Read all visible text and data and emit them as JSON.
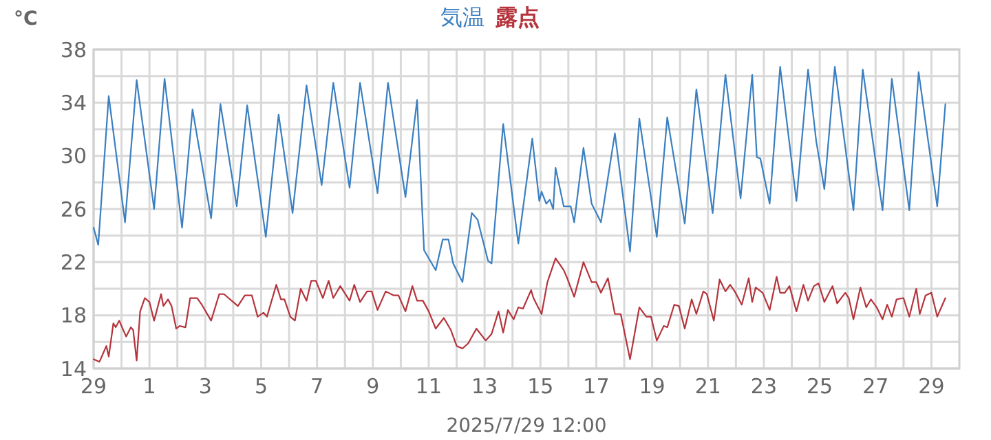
{
  "chart_data": {
    "type": "line",
    "ylabel": "°C",
    "legend": "top",
    "grid": true,
    "annotations": [
      "2025/7/29 12:00"
    ],
    "xlim": [
      "2025-06-29",
      "2025-07-30"
    ],
    "xticks": [
      {
        "value": "2025-06-29",
        "label": "29"
      },
      {
        "value": "2025-06-30",
        "label": null
      },
      {
        "value": "2025-07-01",
        "label": "1"
      },
      {
        "value": "2025-07-02",
        "label": null
      },
      {
        "value": "2025-07-03",
        "label": "3"
      },
      {
        "value": "2025-07-04",
        "label": null
      },
      {
        "value": "2025-07-05",
        "label": "5"
      },
      {
        "value": "2025-07-06",
        "label": null
      },
      {
        "value": "2025-07-07",
        "label": "7"
      },
      {
        "value": "2025-07-08",
        "label": null
      },
      {
        "value": "2025-07-09",
        "label": "9"
      },
      {
        "value": "2025-07-10",
        "label": null
      },
      {
        "value": "2025-07-11",
        "label": "11"
      },
      {
        "value": "2025-07-12",
        "label": null
      },
      {
        "value": "2025-07-13",
        "label": "13"
      },
      {
        "value": "2025-07-14",
        "label": null
      },
      {
        "value": "2025-07-15",
        "label": "15"
      },
      {
        "value": "2025-07-16",
        "label": null
      },
      {
        "value": "2025-07-17",
        "label": "17"
      },
      {
        "value": "2025-07-18",
        "label": null
      },
      {
        "value": "2025-07-19",
        "label": "19"
      },
      {
        "value": "2025-07-20",
        "label": null
      },
      {
        "value": "2025-07-21",
        "label": "21"
      },
      {
        "value": "2025-07-22",
        "label": null
      },
      {
        "value": "2025-07-23",
        "label": "23"
      },
      {
        "value": "2025-07-24",
        "label": null
      },
      {
        "value": "2025-07-25",
        "label": "25"
      },
      {
        "value": "2025-07-26",
        "label": null
      },
      {
        "value": "2025-07-27",
        "label": "27"
      },
      {
        "value": "2025-07-28",
        "label": null
      },
      {
        "value": "2025-07-29",
        "label": "29"
      }
    ],
    "ylim": [
      14,
      38
    ],
    "yticks": [
      14,
      {
        "value": 16,
        "label": null
      },
      18,
      {
        "value": 20,
        "label": null
      },
      22,
      {
        "value": 24,
        "label": null
      },
      26,
      {
        "value": 28,
        "label": null
      },
      30,
      {
        "value": 32,
        "label": null
      },
      34,
      {
        "value": 36,
        "label": null
      },
      38
    ],
    "series": [
      {
        "name": "気温",
        "color": "#3a7fc1",
        "x": [
          "2025-06-29T00:00",
          "2025-06-29T04:00",
          "2025-06-29T13:00",
          "2025-06-30T03:00",
          "2025-06-30T13:00",
          "2025-07-01T04:00",
          "2025-07-01T13:00",
          "2025-07-02T04:00",
          "2025-07-02T13:00",
          "2025-07-03T05:00",
          "2025-07-03T13:00",
          "2025-07-04T03:00",
          "2025-07-04T12:00",
          "2025-07-05T04:00",
          "2025-07-05T15:00",
          "2025-07-06T03:00",
          "2025-07-06T15:00",
          "2025-07-07T04:00",
          "2025-07-07T14:00",
          "2025-07-08T04:00",
          "2025-07-08T13:00",
          "2025-07-09T04:00",
          "2025-07-09T13:00",
          "2025-07-10T04:00",
          "2025-07-10T14:00",
          "2025-07-10T20:00",
          "2025-07-11T06:00",
          "2025-07-11T12:00",
          "2025-07-11T17:00",
          "2025-07-11T21:00",
          "2025-07-12T05:00",
          "2025-07-12T13:00",
          "2025-07-12T18:00",
          "2025-07-13T03:00",
          "2025-07-13T06:00",
          "2025-07-13T16:00",
          "2025-07-14T05:00",
          "2025-07-14T17:00",
          "2025-07-14T23:00",
          "2025-07-15T01:00",
          "2025-07-15T05:00",
          "2025-07-15T08:00",
          "2025-07-15T11:00",
          "2025-07-15T13:00",
          "2025-07-15T20:00",
          "2025-07-16T02:00",
          "2025-07-16T05:00",
          "2025-07-16T13:00",
          "2025-07-16T20:00",
          "2025-07-17T04:00",
          "2025-07-17T16:00",
          "2025-07-18T05:00",
          "2025-07-18T13:00",
          "2025-07-19T04:00",
          "2025-07-19T13:00",
          "2025-07-20T04:00",
          "2025-07-20T14:00",
          "2025-07-21T04:00",
          "2025-07-21T15:00",
          "2025-07-22T04:00",
          "2025-07-22T14:00",
          "2025-07-22T18:00",
          "2025-07-22T21:00",
          "2025-07-23T05:00",
          "2025-07-23T14:00",
          "2025-07-24T04:00",
          "2025-07-24T14:00",
          "2025-07-24T21:00",
          "2025-07-25T04:00",
          "2025-07-25T13:00",
          "2025-07-26T05:00",
          "2025-07-26T13:00",
          "2025-07-27T06:00",
          "2025-07-27T14:00",
          "2025-07-28T05:00",
          "2025-07-28T13:00",
          "2025-07-29T05:00",
          "2025-07-29T12:00"
        ],
        "values": [
          24.6,
          23.3,
          34.5,
          25.0,
          35.7,
          26.0,
          35.8,
          24.6,
          33.5,
          25.3,
          33.9,
          26.2,
          33.8,
          23.9,
          33.1,
          25.7,
          35.3,
          27.8,
          35.5,
          27.6,
          35.5,
          27.2,
          35.5,
          26.9,
          34.2,
          22.9,
          21.4,
          23.7,
          23.7,
          21.9,
          20.5,
          25.7,
          25.2,
          22.1,
          21.9,
          32.4,
          23.4,
          31.3,
          26.6,
          27.3,
          26.4,
          26.7,
          26.0,
          29.1,
          26.2,
          26.2,
          25.0,
          30.6,
          26.4,
          25.0,
          31.7,
          22.8,
          32.8,
          23.9,
          32.9,
          24.9,
          35.0,
          25.7,
          36.1,
          26.8,
          36.1,
          29.9,
          29.8,
          26.4,
          36.7,
          26.6,
          36.5,
          31.1,
          27.5,
          36.7,
          25.9,
          36.5,
          25.9,
          35.8,
          25.9,
          36.3,
          26.2,
          33.9
        ]
      },
      {
        "name": "露点",
        "color": "#b5343c",
        "x": [
          "2025-06-29T00:00",
          "2025-06-29T05:00",
          "2025-06-29T11:00",
          "2025-06-29T13:00",
          "2025-06-29T17:00",
          "2025-06-29T19:00",
          "2025-06-29T22:00",
          "2025-06-30T04:00",
          "2025-06-30T08:00",
          "2025-06-30T10:00",
          "2025-06-30T13:00",
          "2025-06-30T16:00",
          "2025-06-30T20:00",
          "2025-07-01T00:00",
          "2025-07-01T04:00",
          "2025-07-01T10:00",
          "2025-07-01T12:00",
          "2025-07-01T16:00",
          "2025-07-01T19:00",
          "2025-07-01T23:00",
          "2025-07-02T02:00",
          "2025-07-02T07:00",
          "2025-07-02T11:00",
          "2025-07-02T17:00",
          "2025-07-02T21:00",
          "2025-07-03T05:00",
          "2025-07-03T12:00",
          "2025-07-03T16:00",
          "2025-07-04T04:00",
          "2025-07-04T10:00",
          "2025-07-04T16:00",
          "2025-07-04T21:00",
          "2025-07-05T02:00",
          "2025-07-05T05:00",
          "2025-07-05T13:00",
          "2025-07-05T17:00",
          "2025-07-05T20:00",
          "2025-07-06T01:00",
          "2025-07-06T05:00",
          "2025-07-06T10:00",
          "2025-07-06T15:00",
          "2025-07-06T19:00",
          "2025-07-06T23:00",
          "2025-07-07T05:00",
          "2025-07-07T10:00",
          "2025-07-07T14:00",
          "2025-07-07T20:00",
          "2025-07-08T04:00",
          "2025-07-08T08:00",
          "2025-07-08T13:00",
          "2025-07-08T19:00",
          "2025-07-08T23:00",
          "2025-07-09T04:00",
          "2025-07-09T11:00",
          "2025-07-09T18:00",
          "2025-07-09T22:00",
          "2025-07-10T04:00",
          "2025-07-10T10:00",
          "2025-07-10T14:00",
          "2025-07-10T19:00",
          "2025-07-11T00:00",
          "2025-07-11T06:00",
          "2025-07-11T13:00",
          "2025-07-11T19:00",
          "2025-07-12T00:00",
          "2025-07-12T05:00",
          "2025-07-12T10:00",
          "2025-07-12T17:00",
          "2025-07-13T01:00",
          "2025-07-13T06:00",
          "2025-07-13T12:00",
          "2025-07-13T16:00",
          "2025-07-13T20:00",
          "2025-07-14T01:00",
          "2025-07-14T05:00",
          "2025-07-14T09:00",
          "2025-07-14T16:00",
          "2025-07-14T18:00",
          "2025-07-15T01:00",
          "2025-07-15T06:00",
          "2025-07-15T13:00",
          "2025-07-15T20:00",
          "2025-07-15T23:00",
          "2025-07-16T05:00",
          "2025-07-16T13:00",
          "2025-07-16T20:00",
          "2025-07-17T00:00",
          "2025-07-17T04:00",
          "2025-07-17T10:00",
          "2025-07-17T16:00",
          "2025-07-17T21:00",
          "2025-07-18T05:00",
          "2025-07-18T13:00",
          "2025-07-18T19:00",
          "2025-07-18T23:00",
          "2025-07-19T04:00",
          "2025-07-19T10:00",
          "2025-07-19T13:00",
          "2025-07-19T19:00",
          "2025-07-19T23:00",
          "2025-07-20T04:00",
          "2025-07-20T10:00",
          "2025-07-20T14:00",
          "2025-07-20T20:00",
          "2025-07-20T23:00",
          "2025-07-21T05:00",
          "2025-07-21T10:00",
          "2025-07-21T15:00",
          "2025-07-21T19:00",
          "2025-07-21T23:00",
          "2025-07-22T05:00",
          "2025-07-22T11:00",
          "2025-07-22T14:00",
          "2025-07-22T17:00",
          "2025-07-22T23:00",
          "2025-07-23T05:00",
          "2025-07-23T11:00",
          "2025-07-23T14:00",
          "2025-07-23T18:00",
          "2025-07-23T22:00",
          "2025-07-24T04:00",
          "2025-07-24T10:00",
          "2025-07-24T14:00",
          "2025-07-24T19:00",
          "2025-07-24T23:00",
          "2025-07-25T04:00",
          "2025-07-25T11:00",
          "2025-07-25T15:00",
          "2025-07-25T22:00",
          "2025-07-26T01:00",
          "2025-07-26T05:00",
          "2025-07-26T11:00",
          "2025-07-26T16:00",
          "2025-07-26T20:00",
          "2025-07-27T01:00",
          "2025-07-27T06:00",
          "2025-07-27T10:00",
          "2025-07-27T14:00",
          "2025-07-27T18:00",
          "2025-07-28T00:00",
          "2025-07-28T05:00",
          "2025-07-28T11:00",
          "2025-07-28T14:00",
          "2025-07-28T19:00",
          "2025-07-29T00:00",
          "2025-07-29T05:00",
          "2025-07-29T12:00"
        ],
        "values": [
          14.7,
          14.5,
          15.7,
          14.9,
          17.4,
          17.1,
          17.6,
          16.4,
          17.1,
          16.9,
          14.6,
          18.3,
          19.3,
          19.0,
          17.6,
          19.6,
          18.7,
          19.2,
          18.7,
          17.0,
          17.2,
          17.1,
          19.3,
          19.3,
          18.8,
          17.6,
          19.6,
          19.6,
          18.7,
          19.5,
          19.5,
          17.9,
          18.2,
          17.9,
          20.3,
          19.2,
          19.2,
          17.9,
          17.6,
          20.0,
          19.1,
          20.6,
          20.6,
          19.3,
          20.6,
          19.3,
          20.2,
          19.1,
          20.3,
          19.0,
          19.8,
          19.8,
          18.4,
          19.8,
          19.5,
          19.5,
          18.3,
          20.2,
          19.1,
          19.1,
          18.3,
          17.0,
          17.8,
          16.9,
          15.7,
          15.5,
          15.9,
          17.0,
          16.1,
          16.6,
          18.3,
          16.7,
          18.4,
          17.7,
          18.6,
          18.5,
          19.9,
          19.3,
          18.1,
          20.5,
          22.3,
          21.4,
          20.8,
          19.4,
          22.0,
          20.5,
          20.5,
          19.7,
          20.8,
          18.1,
          18.1,
          14.7,
          18.6,
          17.9,
          17.9,
          16.1,
          17.2,
          17.1,
          18.8,
          18.7,
          17.0,
          19.2,
          18.1,
          19.8,
          19.6,
          17.6,
          20.7,
          19.8,
          20.3,
          19.8,
          18.8,
          20.8,
          19.0,
          20.1,
          19.7,
          18.4,
          20.9,
          19.7,
          19.7,
          20.2,
          18.3,
          20.3,
          19.1,
          20.2,
          20.4,
          19.0,
          20.2,
          18.9,
          19.7,
          19.3,
          17.7,
          20.1,
          18.6,
          19.2,
          18.6,
          17.7,
          18.8,
          17.9,
          19.2,
          19.3,
          17.9,
          20.0,
          18.1,
          19.5,
          19.7,
          17.9,
          19.3
        ]
      }
    ]
  }
}
